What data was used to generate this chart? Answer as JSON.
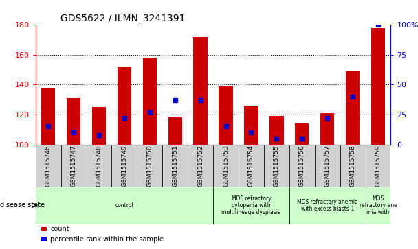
{
  "title": "GDS5622 / ILMN_3241391",
  "samples": [
    "GSM1515746",
    "GSM1515747",
    "GSM1515748",
    "GSM1515749",
    "GSM1515750",
    "GSM1515751",
    "GSM1515752",
    "GSM1515753",
    "GSM1515754",
    "GSM1515755",
    "GSM1515756",
    "GSM1515757",
    "GSM1515758",
    "GSM1515759"
  ],
  "counts": [
    138,
    131,
    125,
    152,
    158,
    118,
    172,
    139,
    126,
    119,
    114,
    121,
    149,
    178
  ],
  "percentile_ranks": [
    15,
    10,
    8,
    22,
    27,
    37,
    37,
    15,
    10,
    5,
    5,
    22,
    40,
    100
  ],
  "ymin": 100,
  "ymax": 180,
  "yticks": [
    100,
    120,
    140,
    160,
    180
  ],
  "y2ticks": [
    0,
    25,
    50,
    75,
    100
  ],
  "bar_color": "#cc0000",
  "marker_color": "#0000cc",
  "grid_color": "#888888",
  "group_bounds": [
    {
      "start": 0,
      "end": 7,
      "label": "control"
    },
    {
      "start": 7,
      "end": 10,
      "label": "MDS refractory\ncytopenia with\nmultilineage dysplasia"
    },
    {
      "start": 10,
      "end": 13,
      "label": "MDS refractory anemia\nwith excess blasts-1"
    },
    {
      "start": 13,
      "end": 14,
      "label": "MDS\nrefractory ane\nmia with"
    }
  ],
  "group_color": "#ccffcc",
  "disease_label": "disease state",
  "legend_count": "count",
  "legend_percentile": "percentile rank within the sample",
  "bar_width": 0.55,
  "baseline": 100,
  "tick_bg": "#d0d0d0",
  "spine_color": "#000000"
}
